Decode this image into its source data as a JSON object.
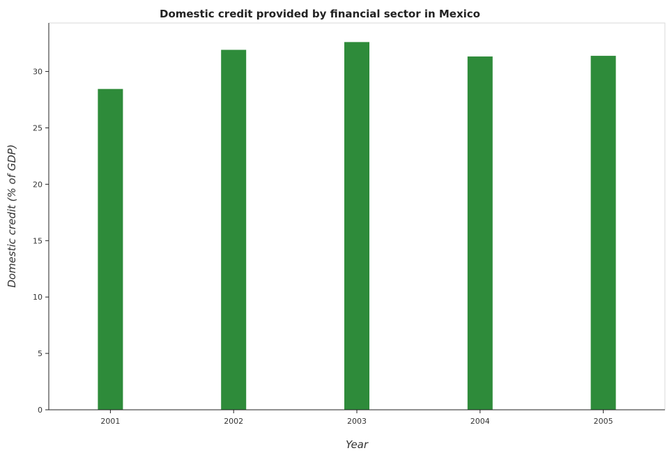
{
  "chart_data": {
    "type": "bar",
    "title": "Domestic credit provided by financial sector in Mexico",
    "xlabel": "Year",
    "ylabel": "Domestic credit (% of GDP)",
    "categories": [
      "2001",
      "2002",
      "2003",
      "2004",
      "2005"
    ],
    "values": [
      28.45,
      31.92,
      32.61,
      31.33,
      31.39
    ],
    "ylim": [
      0,
      34.3
    ],
    "yticks": [
      0,
      5,
      10,
      15,
      20,
      25,
      30
    ],
    "ytick_labels": [
      "0",
      "5",
      "10",
      "15",
      "20",
      "25",
      "30"
    ],
    "bar_color": "#2e8b3a",
    "grid": false,
    "legend": "none"
  }
}
